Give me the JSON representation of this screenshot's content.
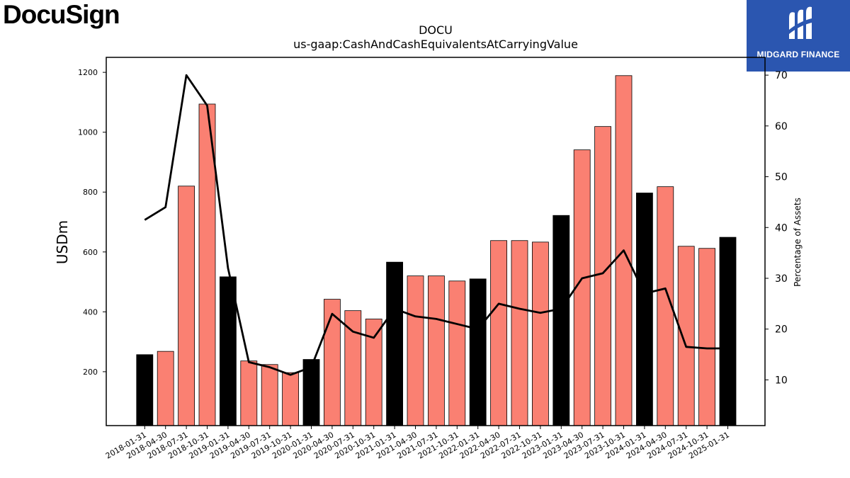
{
  "branding": {
    "company_logo_text": "DocuSign",
    "publisher_logo_text": "MIDGARD FINANCE",
    "publisher_logo_color": "#2b56b0"
  },
  "chart_data": {
    "type": "bar",
    "title": "DOCU",
    "subtitle": "us-gaap:CashAndCashEquivalentsAtCarryingValue",
    "ylabel": "USDm",
    "y2label": "Percentage of Assets",
    "ylim": [
      20,
      1250
    ],
    "y2lim": [
      1,
      73.5
    ],
    "yticks": [
      200,
      400,
      600,
      800,
      1000,
      1200
    ],
    "y2ticks": [
      10,
      20,
      30,
      40,
      50,
      60,
      70
    ],
    "colors": {
      "fiscal_year_end": "#000000",
      "quarter": "#fa8072",
      "line": "#000000"
    },
    "categories": [
      "2018-01-31",
      "2018-04-30",
      "2018-07-31",
      "2018-10-31",
      "2019-01-31",
      "2019-04-30",
      "2019-07-31",
      "2019-10-31",
      "2020-01-31",
      "2020-04-30",
      "2020-07-31",
      "2020-10-31",
      "2021-01-31",
      "2021-04-30",
      "2021-07-31",
      "2021-10-31",
      "2022-01-31",
      "2022-04-30",
      "2022-07-31",
      "2022-10-31",
      "2023-01-31",
      "2023-04-30",
      "2023-07-31",
      "2023-10-31",
      "2024-01-31",
      "2024-04-30",
      "2024-07-31",
      "2024-10-31",
      "2025-01-31"
    ],
    "series": [
      {
        "type": "bar",
        "values": [
          257,
          268,
          820,
          1094,
          517,
          236,
          224,
          197,
          241,
          442,
          404,
          376,
          566,
          520,
          520,
          503,
          510,
          638,
          638,
          633,
          722,
          941,
          1019,
          1189,
          797,
          818,
          619,
          612,
          649
        ],
        "highlight": [
          true,
          false,
          false,
          false,
          true,
          false,
          false,
          false,
          true,
          false,
          false,
          false,
          true,
          false,
          false,
          false,
          true,
          false,
          false,
          false,
          true,
          false,
          false,
          false,
          true,
          false,
          false,
          false,
          true
        ]
      },
      {
        "type": "line",
        "axis": "right",
        "values": [
          41.5,
          44,
          70,
          64,
          32,
          13.5,
          12.5,
          11,
          12.5,
          23,
          19.5,
          18.3,
          24,
          22.5,
          22,
          21,
          20,
          25,
          24,
          23.2,
          24,
          30,
          31,
          35.5,
          27,
          28,
          16.5,
          16.2,
          16.2
        ]
      }
    ]
  }
}
